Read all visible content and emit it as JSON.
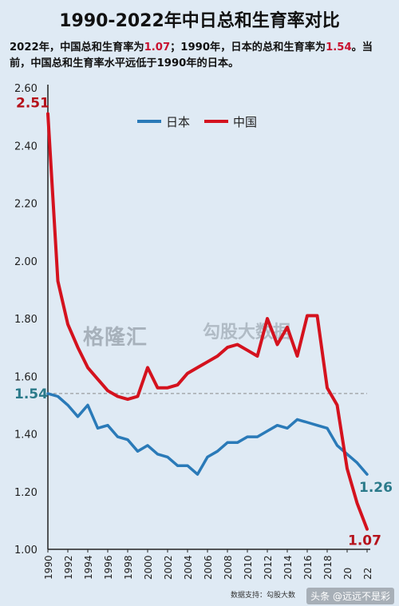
{
  "header": {
    "title": "1990-2022年中日总和生育率对比",
    "subtitle_part1": "2022年，中国总和生育率为",
    "subtitle_value1": "1.07",
    "subtitle_part2": "；1990年，日本的总和生育率为",
    "subtitle_value2": "1.54",
    "subtitle_part3": "。当前，中国总和生育率水平远低于1990年的日本。"
  },
  "footer": {
    "source": "数据支持：勾股大数",
    "watermark_handle": "头条 @远远不是彩"
  },
  "watermarks": {
    "logo1": "格隆汇",
    "logo2": "勾股大数据"
  },
  "colors": {
    "japan": "#2a7ab8",
    "china": "#d4121e",
    "background": "#dfeaf4",
    "label_japan": "#2b7a8a",
    "label_china": "#b5121b"
  },
  "chart_data": {
    "type": "line",
    "x": [
      1990,
      1991,
      1992,
      1993,
      1994,
      1995,
      1996,
      1997,
      1998,
      1999,
      2000,
      2001,
      2002,
      2003,
      2004,
      2005,
      2006,
      2007,
      2008,
      2009,
      2010,
      2011,
      2012,
      2013,
      2014,
      2015,
      2016,
      2017,
      2018,
      2019,
      2020,
      2021,
      2022
    ],
    "tick_labels": [
      "1990",
      "1992",
      "1994",
      "1996",
      "1998",
      "2000",
      "2002",
      "2004",
      "2006",
      "2008",
      "2010",
      "2012",
      "2014",
      "2016",
      "2018",
      "20",
      "22"
    ],
    "tick_years": [
      1990,
      1992,
      1994,
      1996,
      1998,
      2000,
      2002,
      2004,
      2006,
      2008,
      2010,
      2012,
      2014,
      2016,
      2018,
      2020,
      2022
    ],
    "series": [
      {
        "name": "日本",
        "color": "#2a7ab8",
        "values": [
          1.54,
          1.53,
          1.5,
          1.46,
          1.5,
          1.42,
          1.43,
          1.39,
          1.38,
          1.34,
          1.36,
          1.33,
          1.32,
          1.29,
          1.29,
          1.26,
          1.32,
          1.34,
          1.37,
          1.37,
          1.39,
          1.39,
          1.41,
          1.43,
          1.42,
          1.45,
          1.44,
          1.43,
          1.42,
          1.36,
          1.33,
          1.3,
          1.26
        ]
      },
      {
        "name": "中国",
        "color": "#d4121e",
        "values": [
          2.51,
          1.93,
          1.78,
          1.7,
          1.63,
          1.59,
          1.55,
          1.53,
          1.52,
          1.53,
          1.63,
          1.56,
          1.56,
          1.57,
          1.61,
          1.63,
          1.65,
          1.67,
          1.7,
          1.71,
          1.69,
          1.67,
          1.8,
          1.71,
          1.77,
          1.67,
          1.81,
          1.81,
          1.56,
          1.5,
          1.28,
          1.16,
          1.07
        ]
      }
    ],
    "yticks": [
      "2.60",
      "2.40",
      "2.20",
      "2.00",
      "1.80",
      "1.60",
      "1.40",
      "1.20",
      "1.00"
    ],
    "ylim": [
      1.0,
      2.6
    ],
    "xlim": [
      1990,
      2022
    ],
    "reference_line": 1.54,
    "annotations": [
      {
        "text": "2.51",
        "series": "中国",
        "year": 1990
      },
      {
        "text": "1.54",
        "series": "日本",
        "year": 1990
      },
      {
        "text": "1.26",
        "series": "日本",
        "year": 2022
      },
      {
        "text": "1.07",
        "series": "中国",
        "year": 2022
      }
    ],
    "legend": "top-center",
    "grid": false
  }
}
